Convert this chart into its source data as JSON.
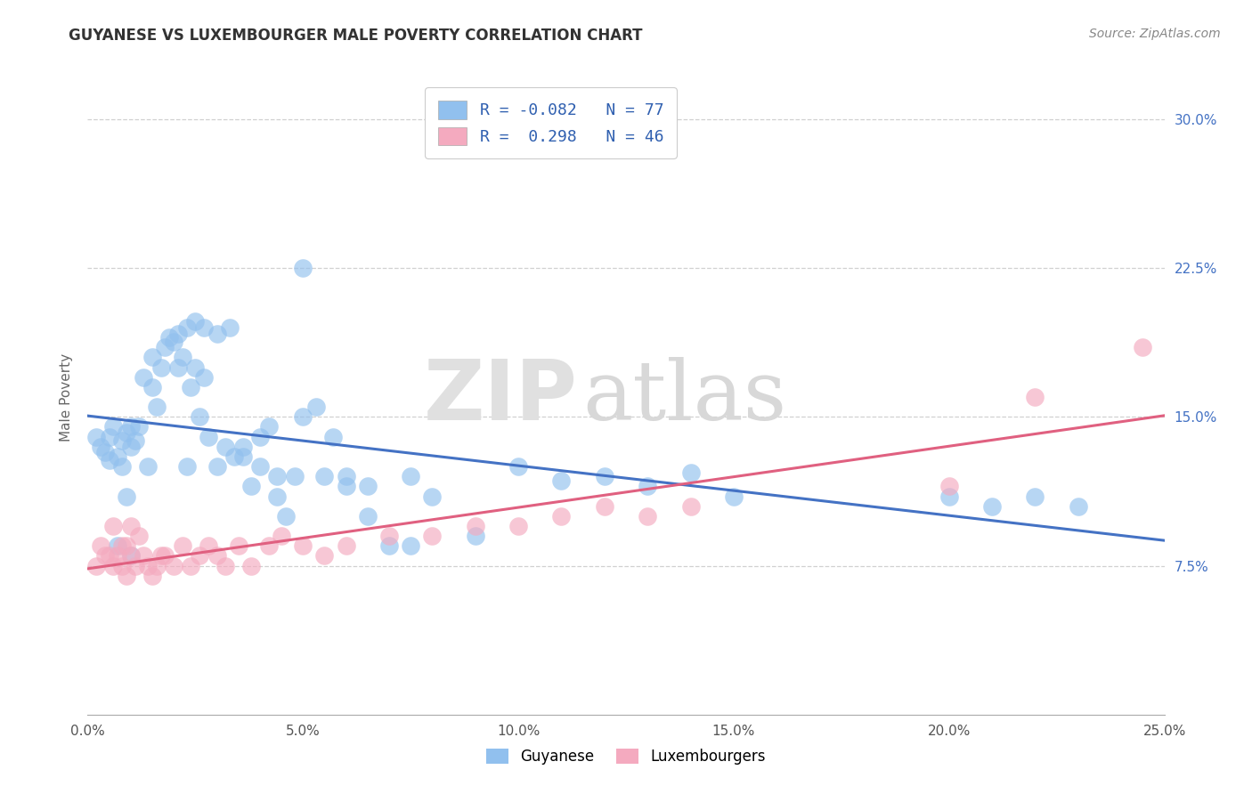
{
  "title": "GUYANESE VS LUXEMBOURGER MALE POVERTY CORRELATION CHART",
  "source": "Source: ZipAtlas.com",
  "xlim": [
    0.0,
    25.0
  ],
  "ylim": [
    0.0,
    32.0
  ],
  "guyanese_color": "#91C0EE",
  "luxembourger_color": "#F4AABF",
  "guyanese_line_color": "#4472C4",
  "luxembourger_line_color": "#E06080",
  "R_guyanese": -0.082,
  "N_guyanese": 77,
  "R_luxembourger": 0.298,
  "N_luxembourger": 46,
  "legend_label_1": "Guyanese",
  "legend_label_2": "Luxembourgers",
  "ylabel": "Male Poverty",
  "watermark_zip": "ZIP",
  "watermark_atlas": "atlas",
  "background_color": "#ffffff",
  "grid_color": "#d0d0d0",
  "guyanese_x": [
    0.2,
    0.3,
    0.4,
    0.5,
    0.5,
    0.6,
    0.7,
    0.7,
    0.8,
    0.8,
    0.9,
    0.9,
    1.0,
    1.0,
    1.0,
    1.1,
    1.2,
    1.3,
    1.4,
    1.5,
    1.5,
    1.6,
    1.7,
    1.8,
    1.9,
    2.0,
    2.1,
    2.2,
    2.3,
    2.4,
    2.5,
    2.6,
    2.7,
    2.8,
    3.0,
    3.2,
    3.4,
    3.6,
    3.8,
    4.0,
    4.2,
    4.4,
    4.6,
    4.8,
    5.0,
    5.3,
    5.7,
    6.0,
    6.5,
    7.0,
    7.5,
    8.0,
    9.0,
    10.0,
    11.0,
    12.0,
    13.0,
    14.0,
    15.0,
    20.0,
    2.1,
    2.3,
    2.5,
    2.7,
    3.0,
    3.3,
    3.6,
    4.0,
    4.4,
    5.0,
    5.5,
    6.0,
    6.5,
    7.5,
    21.0,
    22.0,
    23.0
  ],
  "guyanese_y": [
    14.0,
    13.5,
    13.2,
    14.0,
    12.8,
    14.5,
    13.0,
    8.5,
    13.8,
    12.5,
    14.2,
    11.0,
    13.5,
    8.0,
    14.5,
    13.8,
    14.5,
    17.0,
    12.5,
    18.0,
    16.5,
    15.5,
    17.5,
    18.5,
    19.0,
    18.8,
    17.5,
    18.0,
    12.5,
    16.5,
    17.5,
    15.0,
    17.0,
    14.0,
    12.5,
    13.5,
    13.0,
    13.5,
    11.5,
    14.0,
    14.5,
    11.0,
    10.0,
    12.0,
    15.0,
    15.5,
    14.0,
    12.0,
    11.5,
    8.5,
    12.0,
    11.0,
    9.0,
    12.5,
    11.8,
    12.0,
    11.5,
    12.2,
    11.0,
    11.0,
    19.2,
    19.5,
    19.8,
    19.5,
    19.2,
    19.5,
    13.0,
    12.5,
    12.0,
    22.5,
    12.0,
    11.5,
    10.0,
    8.5,
    10.5,
    11.0,
    10.5
  ],
  "luxembourger_x": [
    0.2,
    0.3,
    0.4,
    0.5,
    0.6,
    0.6,
    0.7,
    0.8,
    0.8,
    0.9,
    0.9,
    1.0,
    1.0,
    1.1,
    1.2,
    1.3,
    1.4,
    1.5,
    1.6,
    1.7,
    1.8,
    2.0,
    2.2,
    2.4,
    2.6,
    2.8,
    3.0,
    3.2,
    3.5,
    3.8,
    4.2,
    4.5,
    5.0,
    5.5,
    6.0,
    7.0,
    8.0,
    9.0,
    10.0,
    11.0,
    12.0,
    13.0,
    14.0,
    20.0,
    22.0,
    24.5
  ],
  "luxembourger_y": [
    7.5,
    8.5,
    8.0,
    8.0,
    7.5,
    9.5,
    8.0,
    7.5,
    8.5,
    7.0,
    8.5,
    9.5,
    8.0,
    7.5,
    9.0,
    8.0,
    7.5,
    7.0,
    7.5,
    8.0,
    8.0,
    7.5,
    8.5,
    7.5,
    8.0,
    8.5,
    8.0,
    7.5,
    8.5,
    7.5,
    8.5,
    9.0,
    8.5,
    8.0,
    8.5,
    9.0,
    9.0,
    9.5,
    9.5,
    10.0,
    10.5,
    10.0,
    10.5,
    11.5,
    16.0,
    18.5
  ]
}
